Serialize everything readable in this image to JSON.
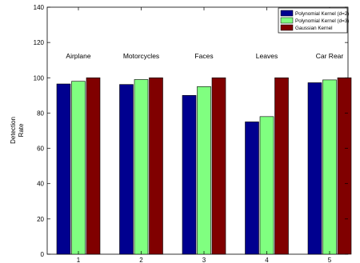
{
  "chart_data": {
    "type": "bar",
    "categories": [
      "1",
      "2",
      "3",
      "4",
      "5"
    ],
    "category_annotations": [
      "Airplane",
      "Motorcycles",
      "Faces",
      "Leaves",
      "Car Rear"
    ],
    "series": [
      {
        "name": "Polynomial Kernel (d=2)",
        "color": "#00008f",
        "values": [
          96.5,
          96.2,
          90.0,
          75.0,
          97.2
        ]
      },
      {
        "name": "Polynomial Kernel (d=3)",
        "color": "#80ff80",
        "values": [
          98.0,
          99.0,
          95.0,
          78.0,
          98.8
        ]
      },
      {
        "name": "Gaussian Kernel",
        "color": "#800000",
        "values": [
          100.0,
          100.0,
          100.0,
          100.0,
          100.0
        ]
      }
    ],
    "xlabel": "",
    "ylabel_lines": [
      "Detection",
      "Rate"
    ],
    "ylim": [
      0,
      140
    ],
    "yticks": [
      0,
      20,
      40,
      60,
      80,
      100,
      120,
      140
    ],
    "grid": false,
    "legend_position": "top-right"
  }
}
